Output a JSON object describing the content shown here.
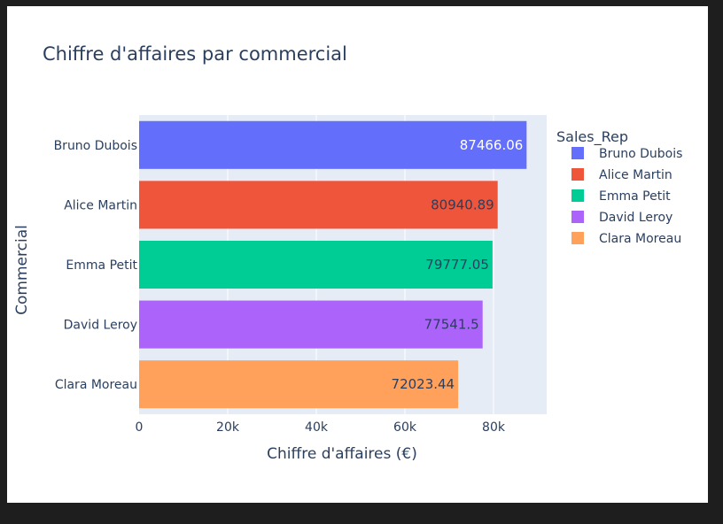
{
  "chart_data": {
    "type": "bar",
    "orientation": "horizontal",
    "title": "Chiffre d'affaires par commercial",
    "xlabel": "Chiffre d'affaires (€)",
    "ylabel": "Commercial",
    "xlim": [
      0,
      92000
    ],
    "x_ticks": [
      {
        "value": 0,
        "label": "0"
      },
      {
        "value": 20000,
        "label": "20k"
      },
      {
        "value": 40000,
        "label": "40k"
      },
      {
        "value": 60000,
        "label": "60k"
      },
      {
        "value": 80000,
        "label": "80k"
      }
    ],
    "grid": true,
    "legend": {
      "title": "Sales_Rep",
      "position": "right"
    },
    "categories": [
      "Bruno Dubois",
      "Alice Martin",
      "Emma Petit",
      "David Leroy",
      "Clara Moreau"
    ],
    "values": [
      87466.06,
      80940.89,
      79777.05,
      77541.5,
      72023.44
    ],
    "value_labels": [
      "87466.06",
      "80940.89",
      "79777.05",
      "77541.5",
      "72023.44"
    ],
    "colors": [
      "#636efa",
      "#ef553b",
      "#00cc96",
      "#ab63fa",
      "#ffa15a"
    ],
    "label_colors": [
      "#ffffff",
      "#2a3f5f",
      "#2a3f5f",
      "#2a3f5f",
      "#2a3f5f"
    ]
  }
}
